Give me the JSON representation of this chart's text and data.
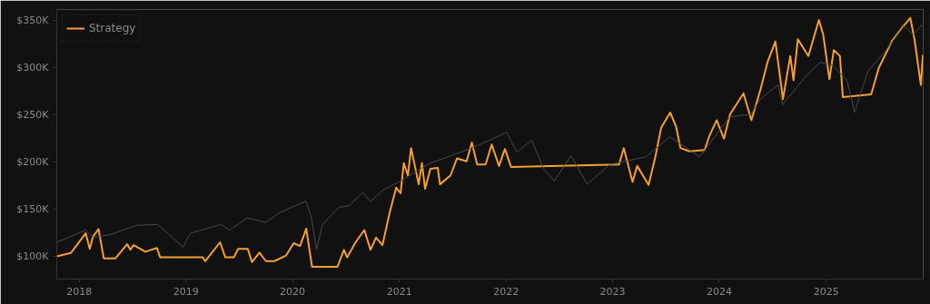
{
  "chart_data": {
    "type": "line",
    "legend": "top left",
    "grid": false,
    "line_style": "solid",
    "xlim": [
      "2017-10-16",
      "2025-11-29"
    ],
    "xticks": [
      {
        "value": "2018-01-01",
        "label": "2018"
      },
      {
        "value": "2019-01-01",
        "label": "2019"
      },
      {
        "value": "2020-01-01",
        "label": "2020"
      },
      {
        "value": "2021-01-01",
        "label": "2021"
      },
      {
        "value": "2022-01-01",
        "label": "2022"
      },
      {
        "value": "2023-01-01",
        "label": "2023"
      },
      {
        "value": "2024-01-01",
        "label": "2024"
      },
      {
        "value": "2025-01-01",
        "label": "2025"
      }
    ],
    "ylim": [
      76000,
      362000
    ],
    "yticks": [
      {
        "value": 100000,
        "label": "$100K"
      },
      {
        "value": 150000,
        "label": "$150K"
      },
      {
        "value": 200000,
        "label": "$200K"
      },
      {
        "value": 250000,
        "label": "$250K"
      },
      {
        "value": 300000,
        "label": "$300K"
      },
      {
        "value": 350000,
        "label": "$350K"
      }
    ],
    "series": [
      {
        "name": "Strategy",
        "color": "#f5a030",
        "x": [
          "2017-10-16",
          "2017-12-03",
          "2018-01-23",
          "2018-02-06",
          "2018-02-17",
          "2018-03-08",
          "2018-03-26",
          "2018-05-05",
          "2018-06-14",
          "2018-06-25",
          "2018-07-06",
          "2018-08-15",
          "2018-09-24",
          "2018-10-05",
          "2019-02-28",
          "2019-03-08",
          "2019-04-28",
          "2019-05-16",
          "2019-06-14",
          "2019-06-29",
          "2019-08-01",
          "2019-08-15",
          "2019-09-10",
          "2019-10-02",
          "2019-10-31",
          "2019-12-10",
          "2020-01-05",
          "2020-01-27",
          "2020-02-17",
          "2020-03-08",
          "2020-06-03",
          "2020-06-25",
          "2020-07-06",
          "2020-08-04",
          "2020-09-03",
          "2020-09-24",
          "2020-10-13",
          "2020-11-04",
          "2020-11-29",
          "2020-12-21",
          "2021-01-05",
          "2021-01-16",
          "2021-01-30",
          "2021-02-10",
          "2021-03-08",
          "2021-03-19",
          "2021-03-30",
          "2021-04-17",
          "2021-05-12",
          "2021-05-20",
          "2021-06-25",
          "2021-07-17",
          "2021-08-19",
          "2021-09-06",
          "2021-09-24",
          "2021-10-23",
          "2021-11-13",
          "2021-12-08",
          "2021-12-28",
          "2022-01-18",
          "2023-01-23",
          "2023-02-08",
          "2023-03-10",
          "2023-03-26",
          "2023-05-04",
          "2023-05-26",
          "2023-06-16",
          "2023-07-17",
          "2023-08-06",
          "2023-08-21",
          "2023-09-21",
          "2023-11-12",
          "2023-11-27",
          "2023-12-23",
          "2024-01-17",
          "2024-02-07",
          "2024-03-24",
          "2024-04-20",
          "2024-05-21",
          "2024-06-14",
          "2024-07-11",
          "2024-08-06",
          "2024-08-31",
          "2024-09-11",
          "2024-09-26",
          "2024-11-01",
          "2024-12-07",
          "2024-12-22",
          "2025-01-12",
          "2025-01-27",
          "2025-02-17",
          "2025-02-27",
          "2025-06-04",
          "2025-06-30",
          "2025-08-15",
          "2025-09-20",
          "2025-10-16",
          "2025-10-31",
          "2025-11-21",
          "2025-11-28"
        ],
        "values": [
          100000,
          103600,
          124600,
          108000,
          121000,
          129000,
          98000,
          98000,
          113000,
          107000,
          112000,
          105000,
          109000,
          99000,
          99000,
          95000,
          115000,
          99000,
          99000,
          108000,
          108000,
          94000,
          104000,
          95000,
          95000,
          101000,
          114000,
          111000,
          129500,
          89000,
          89000,
          107000,
          99000,
          115000,
          128000,
          107000,
          120000,
          112000,
          147000,
          173000,
          167000,
          199000,
          186000,
          215000,
          176500,
          199000,
          171700,
          193000,
          194000,
          176500,
          186000,
          204000,
          201000,
          221000,
          197600,
          197600,
          218700,
          196000,
          214000,
          195000,
          197600,
          215000,
          179000,
          196000,
          176000,
          204000,
          236500,
          252700,
          238000,
          215000,
          211500,
          213000,
          227000,
          244600,
          225000,
          251000,
          273000,
          244600,
          277000,
          306000,
          328000,
          267000,
          312700,
          287000,
          330500,
          312700,
          351000,
          335000,
          288000,
          319000,
          312700,
          269000,
          272000,
          300000,
          329000,
          343500,
          353000,
          329000,
          282000,
          314000
        ]
      },
      {
        "color": "#4a4a4a",
        "x": [
          "2017-10-16",
          "2018-01-23",
          "2018-02-17",
          "2018-04-15",
          "2018-07-16",
          "2018-09-26",
          "2018-11-06",
          "2018-12-22",
          "2019-01-17",
          "2019-04-30",
          "2019-05-30",
          "2019-07-31",
          "2019-10-01",
          "2019-11-21",
          "2020-02-16",
          "2020-03-06",
          "2020-03-23",
          "2020-04-13",
          "2020-06-08",
          "2020-07-14",
          "2020-08-29",
          "2020-09-24",
          "2020-11-04",
          "2021-01-06",
          "2021-02-15",
          "2021-04-17",
          "2021-07-29",
          "2021-09-08",
          "2021-11-07",
          "2022-01-03",
          "2022-02-07",
          "2022-03-30",
          "2022-05-10",
          "2022-06-15",
          "2022-08-11",
          "2022-10-06",
          "2022-12-22",
          "2023-04-25",
          "2023-07-16",
          "2023-10-26",
          "2024-02-06",
          "2024-04-19",
          "2024-05-20",
          "2024-07-20",
          "2024-08-05",
          "2024-10-20",
          "2024-12-11",
          "2025-01-22",
          "2025-03-13",
          "2025-04-08",
          "2025-05-24",
          "2025-07-25",
          "2025-09-25",
          "2025-10-25",
          "2025-11-28"
        ],
        "values": [
          115000,
          128000,
          120000,
          123000,
          133000,
          134000,
          123000,
          110000,
          124600,
          134000,
          128000,
          141000,
          136000,
          147000,
          158700,
          141000,
          107000,
          134000,
          152000,
          154000,
          168000,
          158000,
          170000,
          180000,
          188000,
          199000,
          210600,
          215400,
          223500,
          231600,
          210600,
          223500,
          192700,
          180000,
          207000,
          176500,
          197600,
          205700,
          227000,
          205700,
          248000,
          251000,
          267000,
          282000,
          261000,
          290000,
          306000,
          303000,
          287000,
          253000,
          296500,
          319000,
          345000,
          335000,
          346700
        ]
      }
    ]
  }
}
